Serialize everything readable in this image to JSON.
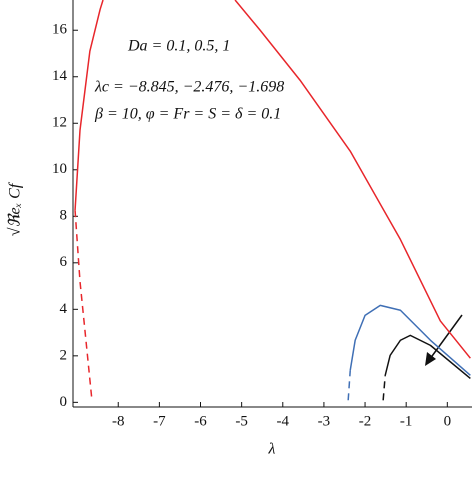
{
  "chart_data": {
    "type": "line",
    "xlabel": "λ",
    "ylabel": "√ℜeₓ Cf",
    "annotations": [
      "Da = 0.1, 0.5, 1",
      "λc = −8.845, −2.476, −1.698",
      "β = 10, φ = Fr = S = δ = 0.1"
    ],
    "xlim": [
      -9.1,
      0.6
    ],
    "ylim": [
      -0.2,
      17.3
    ],
    "xticks": [
      -8,
      -7,
      -6,
      -5,
      -4,
      -3,
      -2,
      -1,
      0
    ],
    "yticks": [
      0,
      2,
      4,
      6,
      8,
      10,
      12,
      14,
      16
    ],
    "series": [
      {
        "color": "#e8262b",
        "dash": false,
        "x": [
          -9.05,
          -8.93,
          -8.69,
          -8.44,
          -8.37
        ],
        "values": [
          8.26,
          11.7,
          15.1,
          16.9,
          17.3
        ]
      },
      {
        "color": "#e8262b",
        "dash": false,
        "x": [
          -5.16,
          -4.55,
          -3.58,
          -2.36,
          -1.14,
          -0.17,
          0.56
        ],
        "values": [
          17.3,
          16.0,
          13.85,
          10.8,
          7.0,
          3.5,
          1.9
        ]
      },
      {
        "color": "#e8262b",
        "dash": true,
        "x": [
          -9.05,
          -8.93,
          -8.81,
          -8.64
        ],
        "values": [
          8.26,
          5.2,
          3.1,
          0.1
        ]
      },
      {
        "color": "#3f6fb5",
        "dash": false,
        "x": [
          -2.36,
          -2.24,
          -2.0,
          -1.63,
          -1.14,
          -0.41,
          0.56
        ],
        "values": [
          1.38,
          2.67,
          3.74,
          4.17,
          3.96,
          2.67,
          1.16
        ]
      },
      {
        "color": "#3f6fb5",
        "dash": true,
        "x": [
          -2.41,
          -2.36
        ],
        "values": [
          0.09,
          1.38
        ]
      },
      {
        "color": "#111111",
        "dash": false,
        "x": [
          -1.51,
          -1.39,
          -1.14,
          -0.9,
          -0.41,
          0.56
        ],
        "values": [
          1.16,
          2.02,
          2.67,
          2.88,
          2.45,
          1.03
        ]
      },
      {
        "color": "#111111",
        "dash": true,
        "x": [
          -1.56,
          -1.51
        ],
        "values": [
          0.09,
          1.16
        ]
      }
    ]
  }
}
